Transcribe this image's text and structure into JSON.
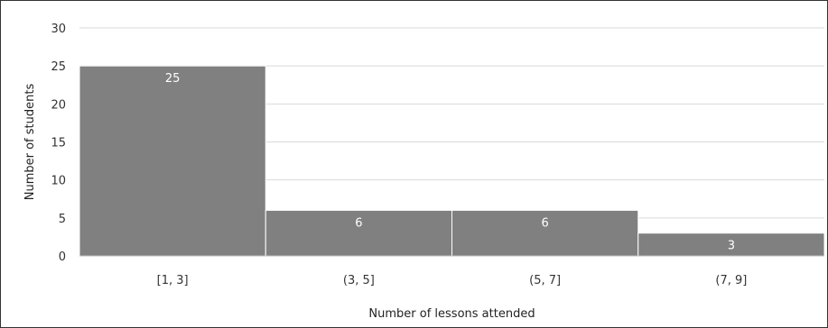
{
  "chart_data": {
    "type": "bar",
    "title": "",
    "xlabel": "Number of lessons attended",
    "ylabel": "Number of students",
    "categories": [
      "[1, 3]",
      "(3, 5]",
      "(5, 7]",
      "(7, 9]"
    ],
    "values": [
      25,
      6,
      6,
      3
    ],
    "ylim": [
      0,
      30
    ],
    "yticks": [
      "0",
      "5",
      "10",
      "15",
      "20",
      "25",
      "30"
    ],
    "grid": true,
    "bar_color": "#808080",
    "grid_color": "#d9d9d9",
    "data_labels": [
      "25",
      "6",
      "6",
      "3"
    ]
  }
}
